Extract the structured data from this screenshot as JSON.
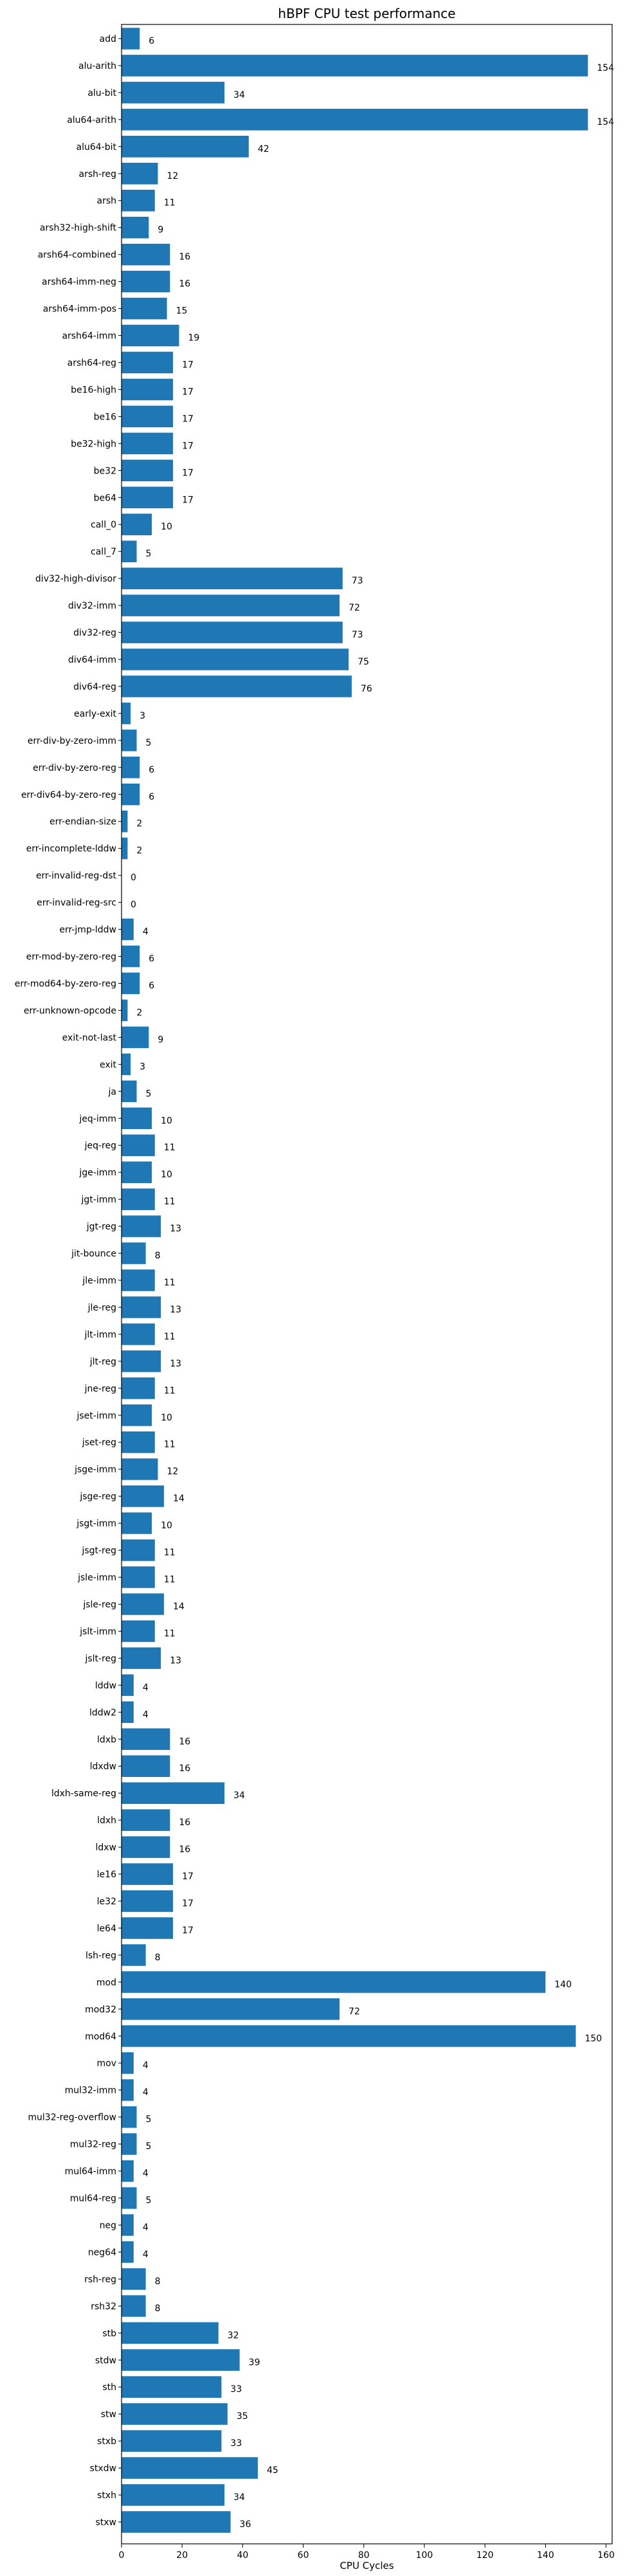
{
  "chart_data": {
    "type": "bar",
    "orientation": "horizontal",
    "title": "hBPF CPU test performance",
    "xlabel": "CPU Cycles",
    "ylabel": "",
    "xlim": [
      0,
      162
    ],
    "xticks": [
      0,
      20,
      40,
      60,
      80,
      100,
      120,
      140,
      160
    ],
    "grid": false,
    "bar_color": "#1f77b4",
    "categories": [
      "add",
      "alu-arith",
      "alu-bit",
      "alu64-arith",
      "alu64-bit",
      "arsh-reg",
      "arsh",
      "arsh32-high-shift",
      "arsh64-combined",
      "arsh64-imm-neg",
      "arsh64-imm-pos",
      "arsh64-imm",
      "arsh64-reg",
      "be16-high",
      "be16",
      "be32-high",
      "be32",
      "be64",
      "call_0",
      "call_7",
      "div32-high-divisor",
      "div32-imm",
      "div32-reg",
      "div64-imm",
      "div64-reg",
      "early-exit",
      "err-div-by-zero-imm",
      "err-div-by-zero-reg",
      "err-div64-by-zero-reg",
      "err-endian-size",
      "err-incomplete-lddw",
      "err-invalid-reg-dst",
      "err-invalid-reg-src",
      "err-jmp-lddw",
      "err-mod-by-zero-reg",
      "err-mod64-by-zero-reg",
      "err-unknown-opcode",
      "exit-not-last",
      "exit",
      "ja",
      "jeq-imm",
      "jeq-reg",
      "jge-imm",
      "jgt-imm",
      "jgt-reg",
      "jit-bounce",
      "jle-imm",
      "jle-reg",
      "jlt-imm",
      "jlt-reg",
      "jne-reg",
      "jset-imm",
      "jset-reg",
      "jsge-imm",
      "jsge-reg",
      "jsgt-imm",
      "jsgt-reg",
      "jsle-imm",
      "jsle-reg",
      "jslt-imm",
      "jslt-reg",
      "lddw",
      "lddw2",
      "ldxb",
      "ldxdw",
      "ldxh-same-reg",
      "ldxh",
      "ldxw",
      "le16",
      "le32",
      "le64",
      "lsh-reg",
      "mod",
      "mod32",
      "mod64",
      "mov",
      "mul32-imm",
      "mul32-reg-overflow",
      "mul32-reg",
      "mul64-imm",
      "mul64-reg",
      "neg",
      "neg64",
      "rsh-reg",
      "rsh32",
      "stb",
      "stdw",
      "sth",
      "stw",
      "stxb",
      "stxdw",
      "stxh",
      "stxw"
    ],
    "values": [
      6,
      154,
      34,
      154,
      42,
      12,
      11,
      9,
      16,
      16,
      15,
      19,
      17,
      17,
      17,
      17,
      17,
      17,
      10,
      5,
      73,
      72,
      73,
      75,
      76,
      3,
      5,
      6,
      6,
      2,
      2,
      0,
      0,
      4,
      6,
      6,
      2,
      9,
      3,
      5,
      10,
      11,
      10,
      11,
      13,
      8,
      11,
      13,
      11,
      13,
      11,
      10,
      11,
      12,
      14,
      10,
      11,
      11,
      14,
      11,
      13,
      4,
      4,
      16,
      16,
      34,
      16,
      16,
      17,
      17,
      17,
      8,
      140,
      72,
      150,
      4,
      4,
      5,
      5,
      4,
      5,
      4,
      4,
      8,
      8,
      32,
      39,
      33,
      35,
      33,
      45,
      34,
      36
    ]
  }
}
